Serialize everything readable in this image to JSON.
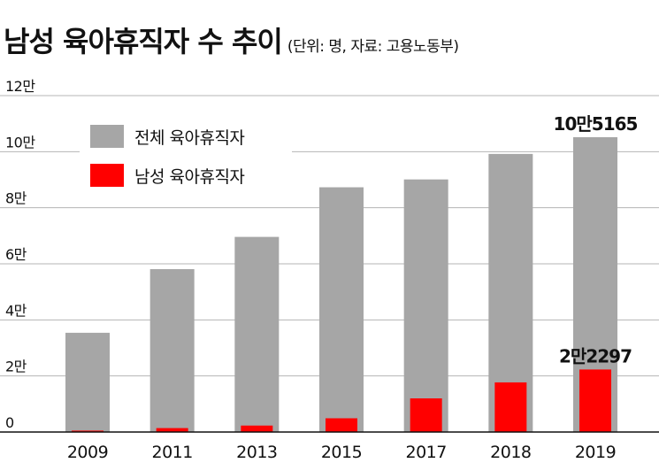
{
  "header": {
    "title": "남성 육아휴직자 수 추이",
    "subtitle": "(단위: 명, 자료: 고용노동부)"
  },
  "chart_data": {
    "type": "bar",
    "categories": [
      "2009",
      "2011",
      "2013",
      "2015",
      "2017",
      "2018",
      "2019"
    ],
    "series": [
      {
        "name": "전체 육아휴직자",
        "color": "#a6a6a6",
        "values": [
          35400,
          58100,
          69600,
          87300,
          90100,
          99200,
          105165
        ]
      },
      {
        "name": "남성 육아휴직자",
        "color": "#ff0000",
        "values": [
          500,
          1400,
          2300,
          4900,
          12000,
          17700,
          22297
        ]
      }
    ],
    "ylim": [
      0,
      120000
    ],
    "yticks": [
      {
        "value": 0,
        "label": "0"
      },
      {
        "value": 20000,
        "label": "2만"
      },
      {
        "value": 40000,
        "label": "4만"
      },
      {
        "value": 60000,
        "label": "6만"
      },
      {
        "value": 80000,
        "label": "8만"
      },
      {
        "value": 100000,
        "label": "10만"
      },
      {
        "value": 120000,
        "label": "12만"
      }
    ],
    "annotations": [
      {
        "category": "2019",
        "series": "전체 육아휴직자",
        "text": "10만5165"
      },
      {
        "category": "2019",
        "series": "남성 육아휴직자",
        "text": "2만2297"
      }
    ],
    "grid": true,
    "legend_position": "top-left"
  }
}
